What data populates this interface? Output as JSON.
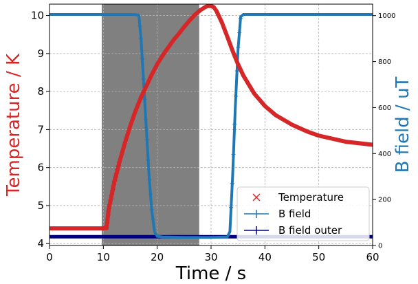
{
  "chart_data": {
    "type": "line",
    "xlabel": "Time / s",
    "ylabel_left": "Temperature / K",
    "ylabel_right": "B field / uT",
    "xlim": [
      0,
      60
    ],
    "ylim_left": [
      3.95,
      10.3
    ],
    "ylim_right": [
      0,
      1050
    ],
    "xticks": [
      0,
      10,
      20,
      30,
      40,
      50,
      60
    ],
    "yticks_left": [
      4,
      5,
      6,
      7,
      8,
      9,
      10
    ],
    "yticks_right": [
      0,
      200,
      400,
      600,
      800,
      1000
    ],
    "grid": true,
    "legend_position": "lower-right",
    "shaded_region": {
      "x": [
        9.7,
        27.8
      ],
      "color": "#808080"
    },
    "colors": {
      "temperature": "#d62728",
      "b_field": "#1f77b4",
      "b_field_outer": "#000080",
      "shade": "#808080"
    },
    "series": [
      {
        "name": "Temperature",
        "axis": "left",
        "marker": "x",
        "x": [
          0,
          9.9,
          10.6,
          11,
          12,
          13,
          14,
          15,
          16,
          17,
          18,
          19,
          20,
          21,
          22,
          23,
          24,
          25,
          26,
          27,
          28,
          29,
          29.5,
          30,
          30.5,
          31,
          32,
          33,
          34,
          35,
          36,
          38,
          40,
          42,
          45,
          48,
          50,
          55,
          60
        ],
        "y": [
          4.4,
          4.4,
          4.42,
          4.9,
          5.6,
          6.15,
          6.65,
          7.1,
          7.5,
          7.85,
          8.15,
          8.45,
          8.72,
          8.95,
          9.15,
          9.35,
          9.52,
          9.7,
          9.87,
          10.02,
          10.14,
          10.23,
          10.25,
          10.25,
          10.22,
          10.12,
          9.82,
          9.45,
          9.07,
          8.72,
          8.42,
          7.95,
          7.62,
          7.38,
          7.13,
          6.94,
          6.84,
          6.68,
          6.6
        ]
      },
      {
        "name": "B field",
        "axis": "right",
        "marker": "+",
        "x": [
          0,
          15.5,
          16.2,
          16.6,
          17,
          17.5,
          18,
          18.5,
          19,
          19.5,
          20,
          21,
          25,
          30,
          33,
          33.5,
          34,
          34.5,
          35,
          35.5,
          36,
          40,
          50,
          60
        ],
        "y": [
          1005,
          1005,
          1004,
          1000,
          900,
          700,
          500,
          300,
          150,
          60,
          40,
          37,
          35,
          35,
          37,
          60,
          300,
          600,
          850,
          995,
          1005,
          1005,
          1005,
          1005
        ]
      },
      {
        "name": "B field outer",
        "axis": "right",
        "marker": "+",
        "x": [
          0,
          10,
          20,
          30,
          40,
          50,
          60
        ],
        "y": [
          38,
          38,
          38,
          38,
          38,
          38,
          38
        ]
      }
    ]
  }
}
